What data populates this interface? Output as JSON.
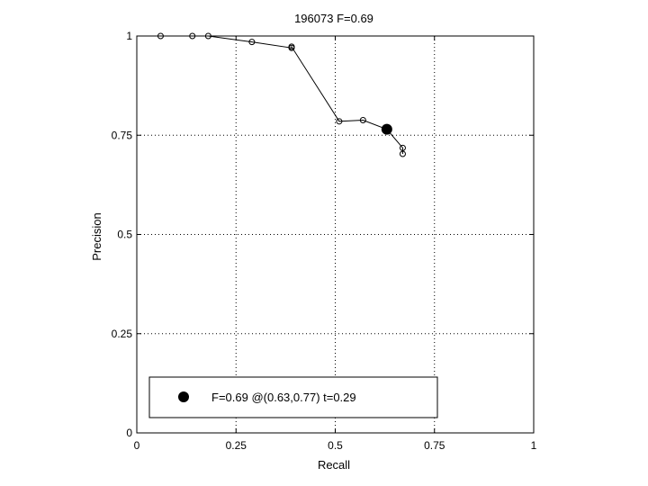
{
  "chart_data": {
    "type": "line",
    "title": "196073 F=0.69",
    "xlabel": "Recall",
    "ylabel": "Precision",
    "xlim": [
      0,
      1
    ],
    "ylim": [
      0,
      1
    ],
    "xticks": [
      0,
      0.25,
      0.5,
      0.75,
      1
    ],
    "xtick_labels": [
      "0",
      "0.25",
      "0.5",
      "0.75",
      "1"
    ],
    "yticks": [
      0,
      0.25,
      0.5,
      0.75,
      1
    ],
    "ytick_labels": [
      "0",
      "0.25",
      "0.5",
      "0.75",
      "1"
    ],
    "grid": true,
    "series": [
      {
        "x": [
          0.06,
          0.14,
          0.18,
          0.29,
          0.39,
          0.39,
          0.51,
          0.57,
          0.63,
          0.67,
          0.67
        ],
        "y": [
          1.0,
          1.0,
          1.0,
          0.985,
          0.97,
          0.973,
          0.785,
          0.788,
          0.765,
          0.718,
          0.703
        ]
      }
    ],
    "highlight_point": {
      "x": 0.63,
      "y": 0.765
    },
    "legend": {
      "position": "bottom-left",
      "text": "F=0.69 @(0.63,0.77) t=0.29"
    }
  }
}
